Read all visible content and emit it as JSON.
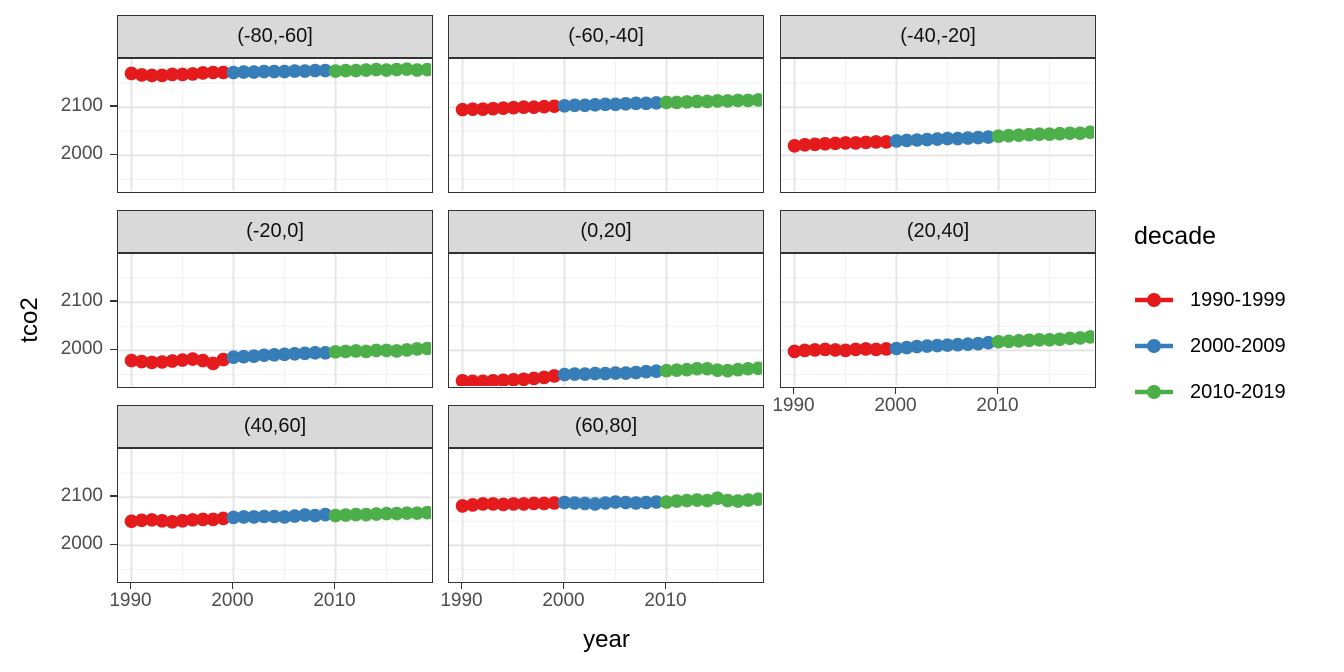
{
  "chart_data": {
    "type": "scatter",
    "title": "",
    "xlabel": "year",
    "ylabel": "tco2",
    "x_ticks": [
      "1990",
      "2000",
      "2010"
    ],
    "y_ticks": [
      "2100",
      "2000"
    ],
    "x_range": [
      1988.7,
      2019.6
    ],
    "y_range": [
      1920,
      2200
    ],
    "grid": true,
    "grid_major_y": [
      2000,
      2100
    ],
    "grid_minor_y": [
      1950,
      2050,
      2150
    ],
    "grid_major_x": [
      1990,
      2000,
      2010
    ],
    "grid_minor_x": [
      1995,
      2005,
      2015
    ],
    "years": [
      1990,
      1991,
      1992,
      1993,
      1994,
      1995,
      1996,
      1997,
      1998,
      1999,
      2000,
      2001,
      2002,
      2003,
      2004,
      2005,
      2006,
      2007,
      2008,
      2009,
      2010,
      2011,
      2012,
      2013,
      2014,
      2015,
      2016,
      2017,
      2018,
      2019
    ],
    "legend": {
      "title": "decade",
      "position": "right",
      "entries": [
        {
          "label": "1990-1999",
          "color": "#E41A1C",
          "year_start": 1990,
          "year_end": 1999
        },
        {
          "label": "2000-2009",
          "color": "#377EB8",
          "year_start": 2000,
          "year_end": 2009
        },
        {
          "label": "2010-2019",
          "color": "#4DAF4A",
          "year_start": 2010,
          "year_end": 2019
        }
      ]
    },
    "facets": [
      {
        "label": "(-80,-60]",
        "tco2": [
          2170,
          2167,
          2166,
          2166,
          2168,
          2168,
          2169,
          2171,
          2172,
          2172,
          2172,
          2173,
          2173,
          2174,
          2174,
          2174,
          2175,
          2175,
          2176,
          2176,
          2175,
          2176,
          2176,
          2177,
          2178,
          2177,
          2178,
          2179,
          2177,
          2178
        ]
      },
      {
        "label": "(-60,-40]",
        "tco2": [
          2095,
          2096,
          2096,
          2097,
          2098,
          2099,
          2100,
          2100,
          2101,
          2102,
          2103,
          2104,
          2104,
          2105,
          2106,
          2106,
          2107,
          2108,
          2108,
          2109,
          2110,
          2110,
          2111,
          2112,
          2112,
          2113,
          2113,
          2114,
          2114,
          2115
        ]
      },
      {
        "label": "(-40,-20]",
        "tco2": [
          2020,
          2022,
          2023,
          2024,
          2025,
          2026,
          2026,
          2027,
          2028,
          2028,
          2030,
          2031,
          2032,
          2033,
          2034,
          2035,
          2035,
          2036,
          2037,
          2038,
          2040,
          2041,
          2042,
          2043,
          2044,
          2044,
          2045,
          2046,
          2046,
          2048
        ]
      },
      {
        "label": "(-20,0]",
        "tco2": [
          1979,
          1977,
          1975,
          1976,
          1978,
          1980,
          1982,
          1979,
          1973,
          1981,
          1986,
          1987,
          1988,
          1990,
          1991,
          1992,
          1993,
          1994,
          1995,
          1995,
          1997,
          1998,
          1999,
          1998,
          2000,
          2000,
          1999,
          2001,
          2003,
          2004
        ]
      },
      {
        "label": "(0,20]",
        "tco2": [
          1937,
          1936,
          1936,
          1937,
          1938,
          1939,
          1940,
          1942,
          1944,
          1947,
          1950,
          1951,
          1951,
          1952,
          1952,
          1953,
          1953,
          1954,
          1956,
          1957,
          1958,
          1959,
          1960,
          1962,
          1962,
          1959,
          1958,
          1960,
          1962,
          1963
        ]
      },
      {
        "label": "(20,40]",
        "tco2": [
          1998,
          2000,
          2001,
          2002,
          2001,
          2000,
          2002,
          2003,
          2002,
          2003,
          2004,
          2006,
          2008,
          2009,
          2010,
          2011,
          2012,
          2013,
          2014,
          2016,
          2018,
          2019,
          2020,
          2021,
          2022,
          2022,
          2023,
          2025,
          2026,
          2028
        ]
      },
      {
        "label": "(40,60]",
        "tco2": [
          2050,
          2052,
          2053,
          2051,
          2049,
          2051,
          2053,
          2054,
          2054,
          2056,
          2058,
          2059,
          2059,
          2060,
          2060,
          2059,
          2061,
          2063,
          2062,
          2064,
          2062,
          2063,
          2064,
          2064,
          2065,
          2066,
          2066,
          2067,
          2067,
          2068
        ]
      },
      {
        "label": "(60,80]",
        "tco2": [
          2082,
          2084,
          2086,
          2086,
          2085,
          2086,
          2086,
          2087,
          2087,
          2088,
          2089,
          2088,
          2087,
          2086,
          2088,
          2090,
          2089,
          2088,
          2089,
          2090,
          2090,
          2092,
          2093,
          2094,
          2093,
          2098,
          2093,
          2092,
          2094,
          2096
        ]
      }
    ]
  },
  "colors": {
    "strip_fill": "#D9D9D9",
    "panel_border": "#333333",
    "grid_major": "#E5E5E5",
    "grid_minor": "#F2F2F2",
    "tick_label": "#4D4D4D"
  }
}
